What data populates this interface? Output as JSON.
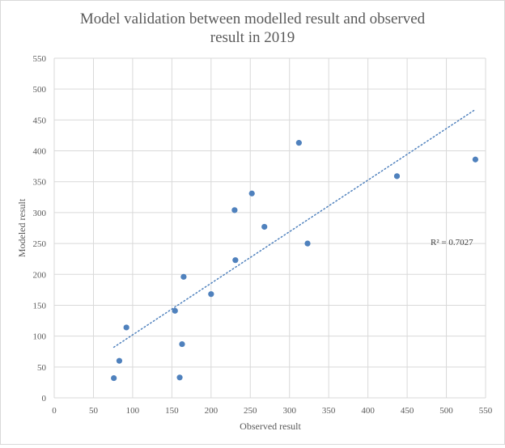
{
  "chart_data": {
    "type": "scatter",
    "title_lines": [
      "Model validation between modelled result and observed",
      "result in 2019"
    ],
    "xlabel": "Observed result",
    "ylabel": "Modeled result",
    "xlim": [
      0,
      550
    ],
    "ylim": [
      0,
      550
    ],
    "x_ticks": [
      0,
      50,
      100,
      150,
      200,
      250,
      300,
      350,
      400,
      450,
      500,
      550
    ],
    "y_ticks": [
      0,
      50,
      100,
      150,
      200,
      250,
      300,
      350,
      400,
      450,
      500,
      550
    ],
    "grid": true,
    "points": [
      {
        "x": 76,
        "y": 32
      },
      {
        "x": 83,
        "y": 60
      },
      {
        "x": 92,
        "y": 114
      },
      {
        "x": 154,
        "y": 141
      },
      {
        "x": 160,
        "y": 33
      },
      {
        "x": 163,
        "y": 87
      },
      {
        "x": 165,
        "y": 196
      },
      {
        "x": 200,
        "y": 168
      },
      {
        "x": 230,
        "y": 304
      },
      {
        "x": 231,
        "y": 223
      },
      {
        "x": 252,
        "y": 331
      },
      {
        "x": 268,
        "y": 277
      },
      {
        "x": 312,
        "y": 413
      },
      {
        "x": 323,
        "y": 250
      },
      {
        "x": 437,
        "y": 359
      },
      {
        "x": 537,
        "y": 386
      }
    ],
    "trendline": {
      "style": "dotted",
      "x_range": [
        76,
        537
      ],
      "y_range": [
        82,
        467
      ],
      "label": "R² = 0.7027"
    },
    "colors": {
      "marker": "#4f81bd",
      "trendline": "#4f81bd",
      "grid": "#d9d9d9",
      "text": "#595959"
    }
  }
}
